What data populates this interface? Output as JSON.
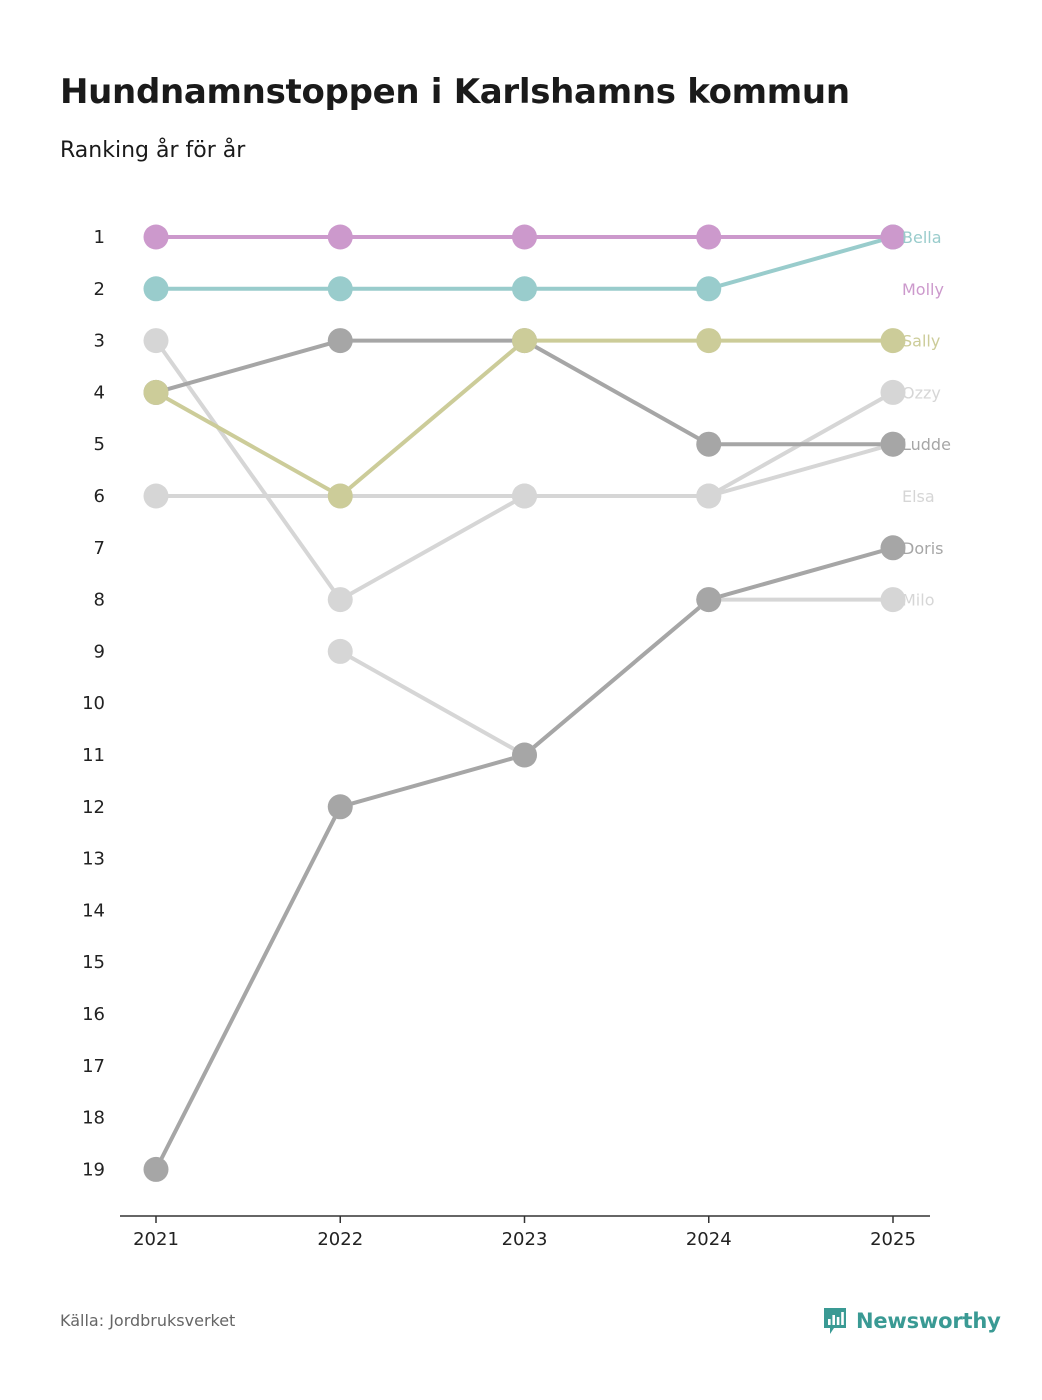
{
  "title": "Hundnamnstoppen i Karlshamns kommun",
  "subtitle": "Ranking år för år",
  "source": "Källa: Jordbruksverket",
  "brand": "Newsworthy",
  "colors": {
    "brand": "#3a9a94",
    "axis": "#333333",
    "purple": "#cc99cc",
    "teal": "#99cccc",
    "olive": "#cccc99",
    "gray_dark": "#a6a6a6",
    "gray_light": "#d6d6d6"
  },
  "chart_data": {
    "type": "line",
    "subtype": "bump",
    "x": [
      "2021",
      "2022",
      "2023",
      "2024",
      "2025"
    ],
    "y_ticks": [
      "1",
      "2",
      "3",
      "4",
      "5",
      "6",
      "7",
      "8",
      "9",
      "10",
      "11",
      "12",
      "13",
      "14",
      "15",
      "16",
      "17",
      "18",
      "19"
    ],
    "ylim": [
      1,
      19
    ],
    "y_inverted": true,
    "grid": false,
    "series": [
      {
        "name": "Bella",
        "color": "#99cccc",
        "values": [
          2,
          2,
          2,
          2,
          1
        ]
      },
      {
        "name": "Molly",
        "color": "#cc99cc",
        "values": [
          1,
          1,
          1,
          1,
          1
        ]
      },
      {
        "name": "Sally",
        "color": "#cccc99",
        "values": [
          4,
          6,
          3,
          3,
          3
        ]
      },
      {
        "name": "Ozzy",
        "color": "#d6d6d6",
        "values": [
          6,
          6,
          6,
          6,
          4
        ]
      },
      {
        "name": "Ludde",
        "color": "#a6a6a6",
        "values": [
          4,
          3,
          3,
          5,
          5
        ]
      },
      {
        "name": "Elsa",
        "color": "#d6d6d6",
        "values": [
          3,
          8,
          6,
          6,
          5
        ]
      },
      {
        "name": "Doris",
        "color": "#a6a6a6",
        "values": [
          19,
          12,
          11,
          8,
          7
        ]
      },
      {
        "name": "Milo",
        "color": "#d6d6d6",
        "values": [
          null,
          9,
          11,
          8,
          8
        ]
      }
    ]
  }
}
